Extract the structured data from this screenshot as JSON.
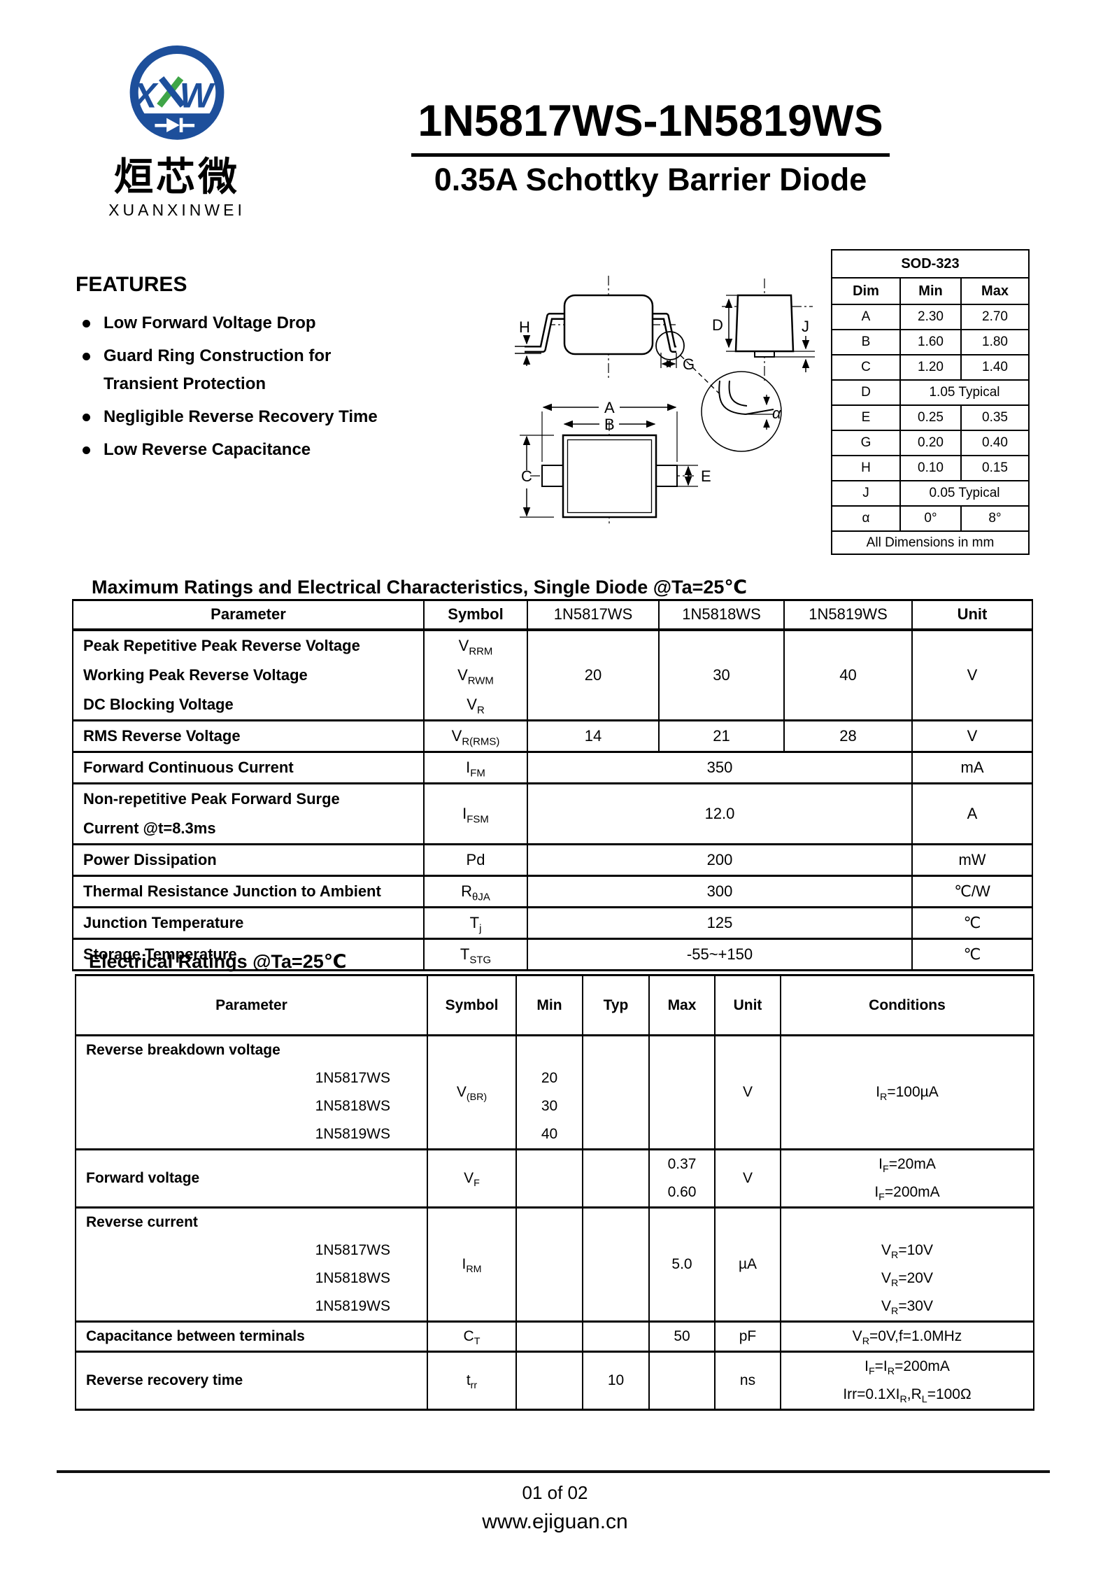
{
  "logo": {
    "chinese": "烜芯微",
    "romanized": "XUANXINWEI",
    "blue": "#1d4f9b",
    "green": "#3fa547"
  },
  "header": {
    "title": "1N5817WS-1N5819WS",
    "subtitle": "0.35A Schottky Barrier Diode"
  },
  "features": {
    "heading": "FEATURES",
    "items": [
      "Low Forward Voltage Drop",
      "Guard Ring Construction for Transient Protection",
      "Negligible Reverse Recovery Time",
      "Low Reverse Capacitance"
    ]
  },
  "diagram": {
    "labels": {
      "h": "H",
      "g": "G",
      "d": "D",
      "j": "J",
      "a": "A",
      "b": "B",
      "c": "C",
      "e": "E",
      "alpha": "α"
    }
  },
  "package_table": {
    "title": "SOD-323",
    "columns": [
      "Dim",
      "Min",
      "Max"
    ],
    "rows": [
      [
        "A",
        "2.30",
        "2.70"
      ],
      [
        "B",
        "1.60",
        "1.80"
      ],
      [
        "C",
        "1.20",
        "1.40"
      ],
      [
        "D",
        "1.05 Typical"
      ],
      [
        "E",
        "0.25",
        "0.35"
      ],
      [
        "G",
        "0.20",
        "0.40"
      ],
      [
        "H",
        "0.10",
        "0.15"
      ],
      [
        "J",
        "0.05 Typical"
      ],
      [
        "α",
        "0°",
        "8°"
      ]
    ],
    "footer": "All Dimensions in mm"
  },
  "max_ratings": {
    "heading": "Maximum Ratings and Electrical Characteristics, Single Diode @Ta=25℃",
    "columns": [
      "Parameter",
      "Symbol",
      "1N5817WS",
      "1N5818WS",
      "1N5819WS",
      "Unit"
    ],
    "rows": [
      {
        "parameter": "Peak Repetitive Peak Reverse Voltage\nWorking Peak  Reverse Voltage\nDC Blocking  Voltage",
        "symbol": "V{RRM}\nV{RWM}\nV{R}",
        "values": [
          "20",
          "30",
          "40"
        ],
        "unit": "V"
      },
      {
        "parameter": "RMS Reverse Voltage",
        "symbol": "V{R(RMS)}",
        "values": [
          "14",
          "21",
          "28"
        ],
        "unit": "V"
      },
      {
        "parameter": "Forward Continuous Current",
        "symbol": "I{FM}",
        "values": "350",
        "unit": "mA"
      },
      {
        "parameter": "Non-repetitive Peak Forward  Surge\nCurrent @t=8.3ms",
        "symbol": "I{FSM}",
        "values": "12.0",
        "unit": "A"
      },
      {
        "parameter": "Power Dissipation",
        "symbol": "Pd",
        "values": "200",
        "unit": "mW"
      },
      {
        "parameter": "Thermal Resistance Junction to Ambient",
        "symbol": "R{θJA}",
        "values": "300",
        "unit": "℃/W"
      },
      {
        "parameter": "Junction Temperature",
        "symbol": "T{j}",
        "values": "125",
        "unit": "℃"
      },
      {
        "parameter": "Storage Temperature",
        "symbol": "T{STG}",
        "values": "-55~+150",
        "unit": "℃"
      }
    ]
  },
  "electrical_ratings": {
    "heading": "Electrical Ratings @Ta=25℃",
    "columns": [
      "Parameter",
      "Symbol",
      "Min",
      "Typ",
      "Max",
      "Unit",
      "Conditions"
    ],
    "rows": [
      {
        "parameter": "Reverse breakdown voltage",
        "parameter_subs": [
          "1N5817WS",
          "1N5818WS",
          "1N5819WS"
        ],
        "symbol": "V{(BR)}",
        "min": "20\n30\n40",
        "typ": "",
        "max": "",
        "unit": "V",
        "conditions": "I{R}=100µA"
      },
      {
        "parameter": "Forward voltage",
        "symbol": "V{F}",
        "min": "",
        "typ": "",
        "max": "0.37\n0.60",
        "unit": "V",
        "conditions": "I{F}=20mA\nI{F}=200mA"
      },
      {
        "parameter": "Reverse current",
        "parameter_subs": [
          "1N5817WS",
          "1N5818WS",
          "1N5819WS"
        ],
        "symbol": "I{RM}",
        "min": "",
        "typ": "",
        "max": "5.0",
        "unit": "µA",
        "conditions": "V{R}=10V\nV{R}=20V\nV{R}=30V"
      },
      {
        "parameter": "Capacitance between terminals",
        "symbol": "C{T}",
        "min": "",
        "typ": "",
        "max": "50",
        "unit": "pF",
        "conditions": "V{R}=0V,f=1.0MHz"
      },
      {
        "parameter": "Reverse recovery time",
        "symbol": "t{rr}",
        "min": "",
        "typ": "10",
        "max": "",
        "unit": "ns",
        "conditions": "I{F}=I{R}=200mA\nIrr=0.1XI{R},R{L}=100Ω"
      }
    ]
  },
  "footer": {
    "page": "01 of 02",
    "website": "www.ejiguan.cn"
  }
}
